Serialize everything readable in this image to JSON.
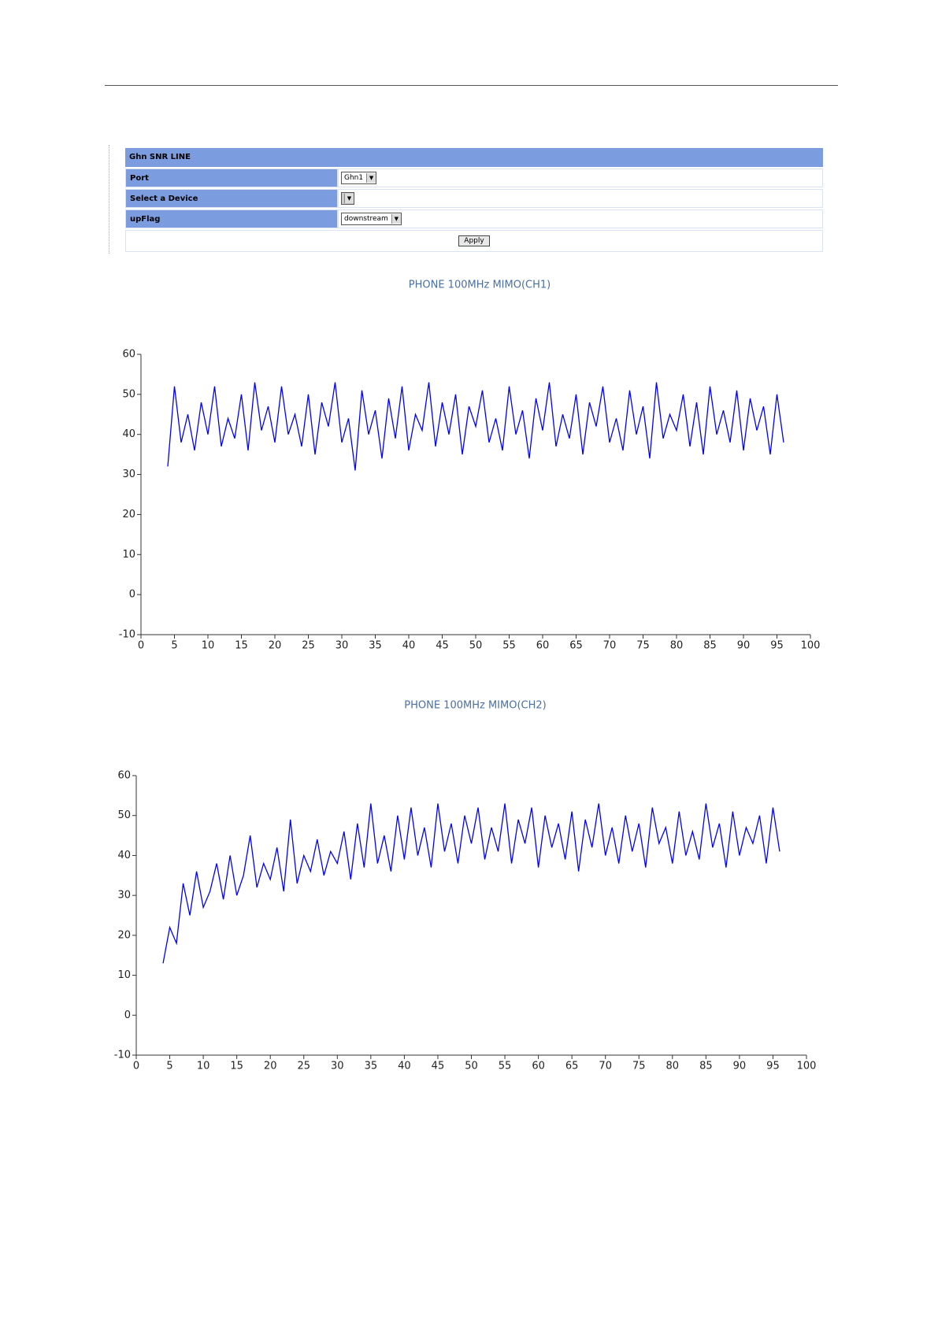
{
  "form": {
    "title": "Ghn SNR LINE",
    "rows": [
      {
        "label": "Port",
        "value": "Ghn1"
      },
      {
        "label": "Select a Device"
      },
      {
        "label": "upFlag",
        "value": "downstream"
      }
    ],
    "button": "Apply"
  },
  "chart_data": [
    {
      "type": "line",
      "title": "PHONE 100MHz MIMO(CH1)",
      "color": "#0000ff",
      "x": [
        4,
        5,
        6,
        7,
        8,
        9,
        10,
        11,
        12,
        13,
        14,
        15,
        16,
        17,
        18,
        19,
        20,
        21,
        22,
        23,
        24,
        25,
        26,
        27,
        28,
        29,
        30,
        31,
        32,
        33,
        34,
        35,
        36,
        37,
        38,
        39,
        40,
        41,
        42,
        43,
        44,
        45,
        46,
        47,
        48,
        49,
        50,
        51,
        52,
        53,
        54,
        55,
        56,
        57,
        58,
        59,
        60,
        61,
        62,
        63,
        64,
        65,
        66,
        67,
        68,
        69,
        70,
        71,
        72,
        73,
        74,
        75,
        76,
        77,
        78,
        79,
        80,
        81,
        82,
        83,
        84,
        85,
        86,
        87,
        88,
        89,
        90,
        91,
        92,
        93,
        94,
        95,
        96
      ],
      "values": [
        32,
        52,
        38,
        45,
        36,
        48,
        40,
        52,
        37,
        44,
        39,
        50,
        36,
        53,
        41,
        47,
        38,
        52,
        40,
        45,
        37,
        50,
        35,
        48,
        42,
        53,
        38,
        44,
        31,
        51,
        40,
        46,
        34,
        49,
        39,
        52,
        36,
        45,
        41,
        53,
        37,
        48,
        40,
        50,
        35,
        47,
        42,
        51,
        38,
        44,
        36,
        52,
        40,
        46,
        34,
        49,
        41,
        53,
        37,
        45,
        39,
        50,
        35,
        48,
        42,
        52,
        38,
        44,
        36,
        51,
        40,
        47,
        34,
        53,
        39,
        45,
        41,
        50,
        37,
        48,
        35,
        52,
        40,
        46,
        38,
        51,
        36,
        49,
        41,
        47,
        35,
        50,
        38
      ],
      "xlim": [
        0,
        100
      ],
      "xticks": [
        0,
        5,
        10,
        15,
        20,
        25,
        30,
        35,
        40,
        45,
        50,
        55,
        60,
        65,
        70,
        75,
        80,
        85,
        90,
        95,
        100
      ],
      "ylim": [
        -10,
        60
      ],
      "yticks": [
        -10,
        0,
        10,
        20,
        30,
        40,
        50,
        60
      ]
    },
    {
      "type": "line",
      "title": "PHONE 100MHz MIMO(CH2)",
      "color": "#0000ff",
      "x": [
        4,
        5,
        6,
        7,
        8,
        9,
        10,
        11,
        12,
        13,
        14,
        15,
        16,
        17,
        18,
        19,
        20,
        21,
        22,
        23,
        24,
        25,
        26,
        27,
        28,
        29,
        30,
        31,
        32,
        33,
        34,
        35,
        36,
        37,
        38,
        39,
        40,
        41,
        42,
        43,
        44,
        45,
        46,
        47,
        48,
        49,
        50,
        51,
        52,
        53,
        54,
        55,
        56,
        57,
        58,
        59,
        60,
        61,
        62,
        63,
        64,
        65,
        66,
        67,
        68,
        69,
        70,
        71,
        72,
        73,
        74,
        75,
        76,
        77,
        78,
        79,
        80,
        81,
        82,
        83,
        84,
        85,
        86,
        87,
        88,
        89,
        90,
        91,
        92,
        93,
        94,
        95,
        96
      ],
      "values": [
        13,
        22,
        18,
        33,
        25,
        36,
        27,
        31,
        38,
        29,
        40,
        30,
        35,
        45,
        32,
        38,
        34,
        42,
        31,
        49,
        33,
        40,
        36,
        44,
        35,
        41,
        38,
        46,
        34,
        48,
        37,
        53,
        38,
        45,
        36,
        50,
        39,
        52,
        40,
        47,
        37,
        53,
        41,
        48,
        38,
        50,
        43,
        52,
        39,
        47,
        41,
        53,
        38,
        49,
        43,
        52,
        37,
        50,
        42,
        48,
        39,
        51,
        36,
        49,
        42,
        53,
        40,
        47,
        38,
        50,
        41,
        48,
        37,
        52,
        43,
        47,
        38,
        51,
        40,
        46,
        39,
        53,
        42,
        48,
        37,
        51,
        40,
        47,
        43,
        50,
        38,
        52,
        41
      ],
      "xlim": [
        0,
        100
      ],
      "xticks": [
        0,
        5,
        10,
        15,
        20,
        25,
        30,
        35,
        40,
        45,
        50,
        55,
        60,
        65,
        70,
        75,
        80,
        85,
        90,
        95,
        100
      ],
      "ylim": [
        -10,
        60
      ],
      "yticks": [
        -10,
        0,
        10,
        20,
        30,
        40,
        50,
        60
      ]
    }
  ]
}
